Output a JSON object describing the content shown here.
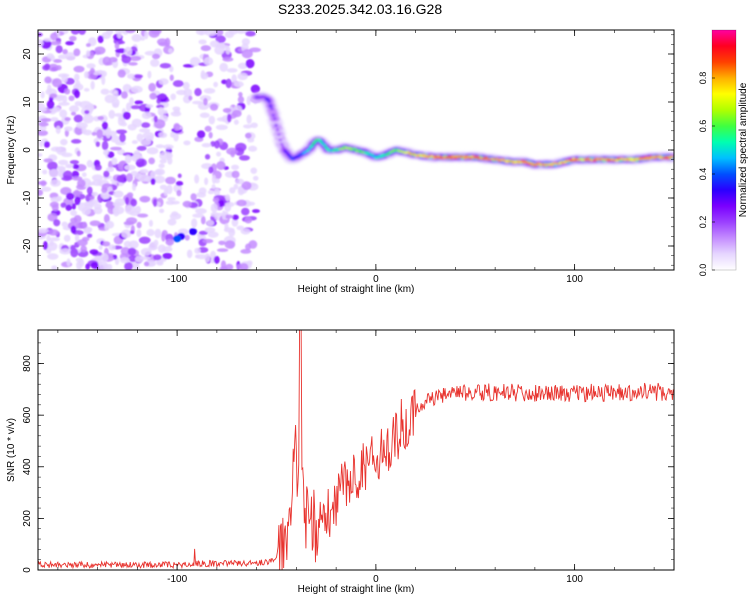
{
  "title": "S233.2025.342.03.16.G28",
  "colors": {
    "snr_line": "#e8332e",
    "axis": "#000000",
    "colormap": [
      "#ffffff",
      "#e6d6ff",
      "#c48cff",
      "#9b40ff",
      "#7a00ff",
      "#2a00ff",
      "#0050ff",
      "#00c0ff",
      "#00ffb0",
      "#40ff40",
      "#b0ff00",
      "#ffff00",
      "#ffb000",
      "#ff4000",
      "#ff0020",
      "#ff00a0"
    ]
  },
  "chart_data": [
    {
      "type": "heatmap",
      "title": "S233.2025.342.03.16.G28",
      "xlabel": "Height of straight line (km)",
      "ylabel": "Frequency (Hz)",
      "xlim": [
        -170,
        150
      ],
      "ylim": [
        -25,
        25
      ],
      "xticks": [
        -100,
        0,
        100
      ],
      "yticks": [
        -20,
        -10,
        0,
        10,
        20
      ],
      "colorbar": {
        "label": "Normalized spectral amplitude",
        "range": [
          0,
          1
        ],
        "ticks": [
          "0.0",
          "0.2",
          "0.4",
          "0.6",
          "0.8"
        ]
      },
      "noise_region_x": [
        -170,
        -60
      ],
      "ridge": {
        "x": [
          -60,
          -57,
          -54,
          -52,
          -50,
          -48,
          -46,
          -44,
          -42,
          -40,
          -38,
          -36,
          -34,
          -32,
          -30,
          -28,
          -26,
          -24,
          -20,
          -15,
          -10,
          -5,
          0,
          5,
          10,
          15,
          20,
          30,
          40,
          50,
          60,
          70,
          75,
          80,
          85,
          90,
          95,
          100,
          110,
          120,
          130,
          140,
          150
        ],
        "y": [
          11,
          11,
          10.5,
          8,
          5,
          2,
          0,
          -1,
          -2,
          -1.5,
          -1,
          -0.5,
          0,
          1,
          2,
          2,
          1,
          0,
          0,
          0.5,
          0,
          -0.5,
          -1.5,
          -1,
          0,
          -0.5,
          -1,
          -1.5,
          -1.5,
          -1.5,
          -2,
          -2.5,
          -2.5,
          -3,
          -3,
          -3,
          -2.5,
          -2,
          -2,
          -2,
          -2,
          -1.5,
          -1.5
        ],
        "amplitude": [
          0.3,
          0.25,
          0.35,
          0.3,
          0.25,
          0.2,
          0.3,
          0.35,
          0.4,
          0.35,
          0.4,
          0.45,
          0.5,
          0.55,
          0.6,
          0.55,
          0.5,
          0.55,
          0.6,
          0.7,
          0.65,
          0.6,
          0.55,
          0.6,
          0.7,
          0.75,
          0.8,
          0.85,
          0.9,
          0.9,
          0.85,
          0.8,
          0.85,
          0.9,
          0.85,
          0.8,
          0.85,
          0.85,
          0.85,
          0.85,
          0.85,
          0.85,
          0.85
        ]
      }
    },
    {
      "type": "line",
      "xlabel": "Height of straight line (km)",
      "ylabel": "SNR (10 * v/v)",
      "xlim": [
        -170,
        150
      ],
      "ylim": [
        0,
        930
      ],
      "xticks": [
        -100,
        0,
        100
      ],
      "yticks": [
        0,
        200,
        400,
        600,
        800
      ],
      "series": [
        {
          "name": "SNR",
          "envelope_x": [
            -170,
            -100,
            -90,
            -60,
            -50,
            -45,
            -42,
            -40,
            -38,
            -35,
            -30,
            -25,
            -20,
            -15,
            -10,
            -5,
            0,
            5,
            10,
            15,
            20,
            25,
            30,
            40,
            50,
            60,
            80,
            100,
            120,
            150
          ],
          "envelope_y": [
            20,
            20,
            25,
            25,
            40,
            150,
            300,
            450,
            300,
            200,
            150,
            200,
            280,
            330,
            380,
            400,
            430,
            480,
            520,
            580,
            620,
            650,
            670,
            680,
            690,
            690,
            685,
            685,
            690,
            690
          ],
          "peak_x": -38,
          "peak_y": 930
        }
      ]
    }
  ]
}
